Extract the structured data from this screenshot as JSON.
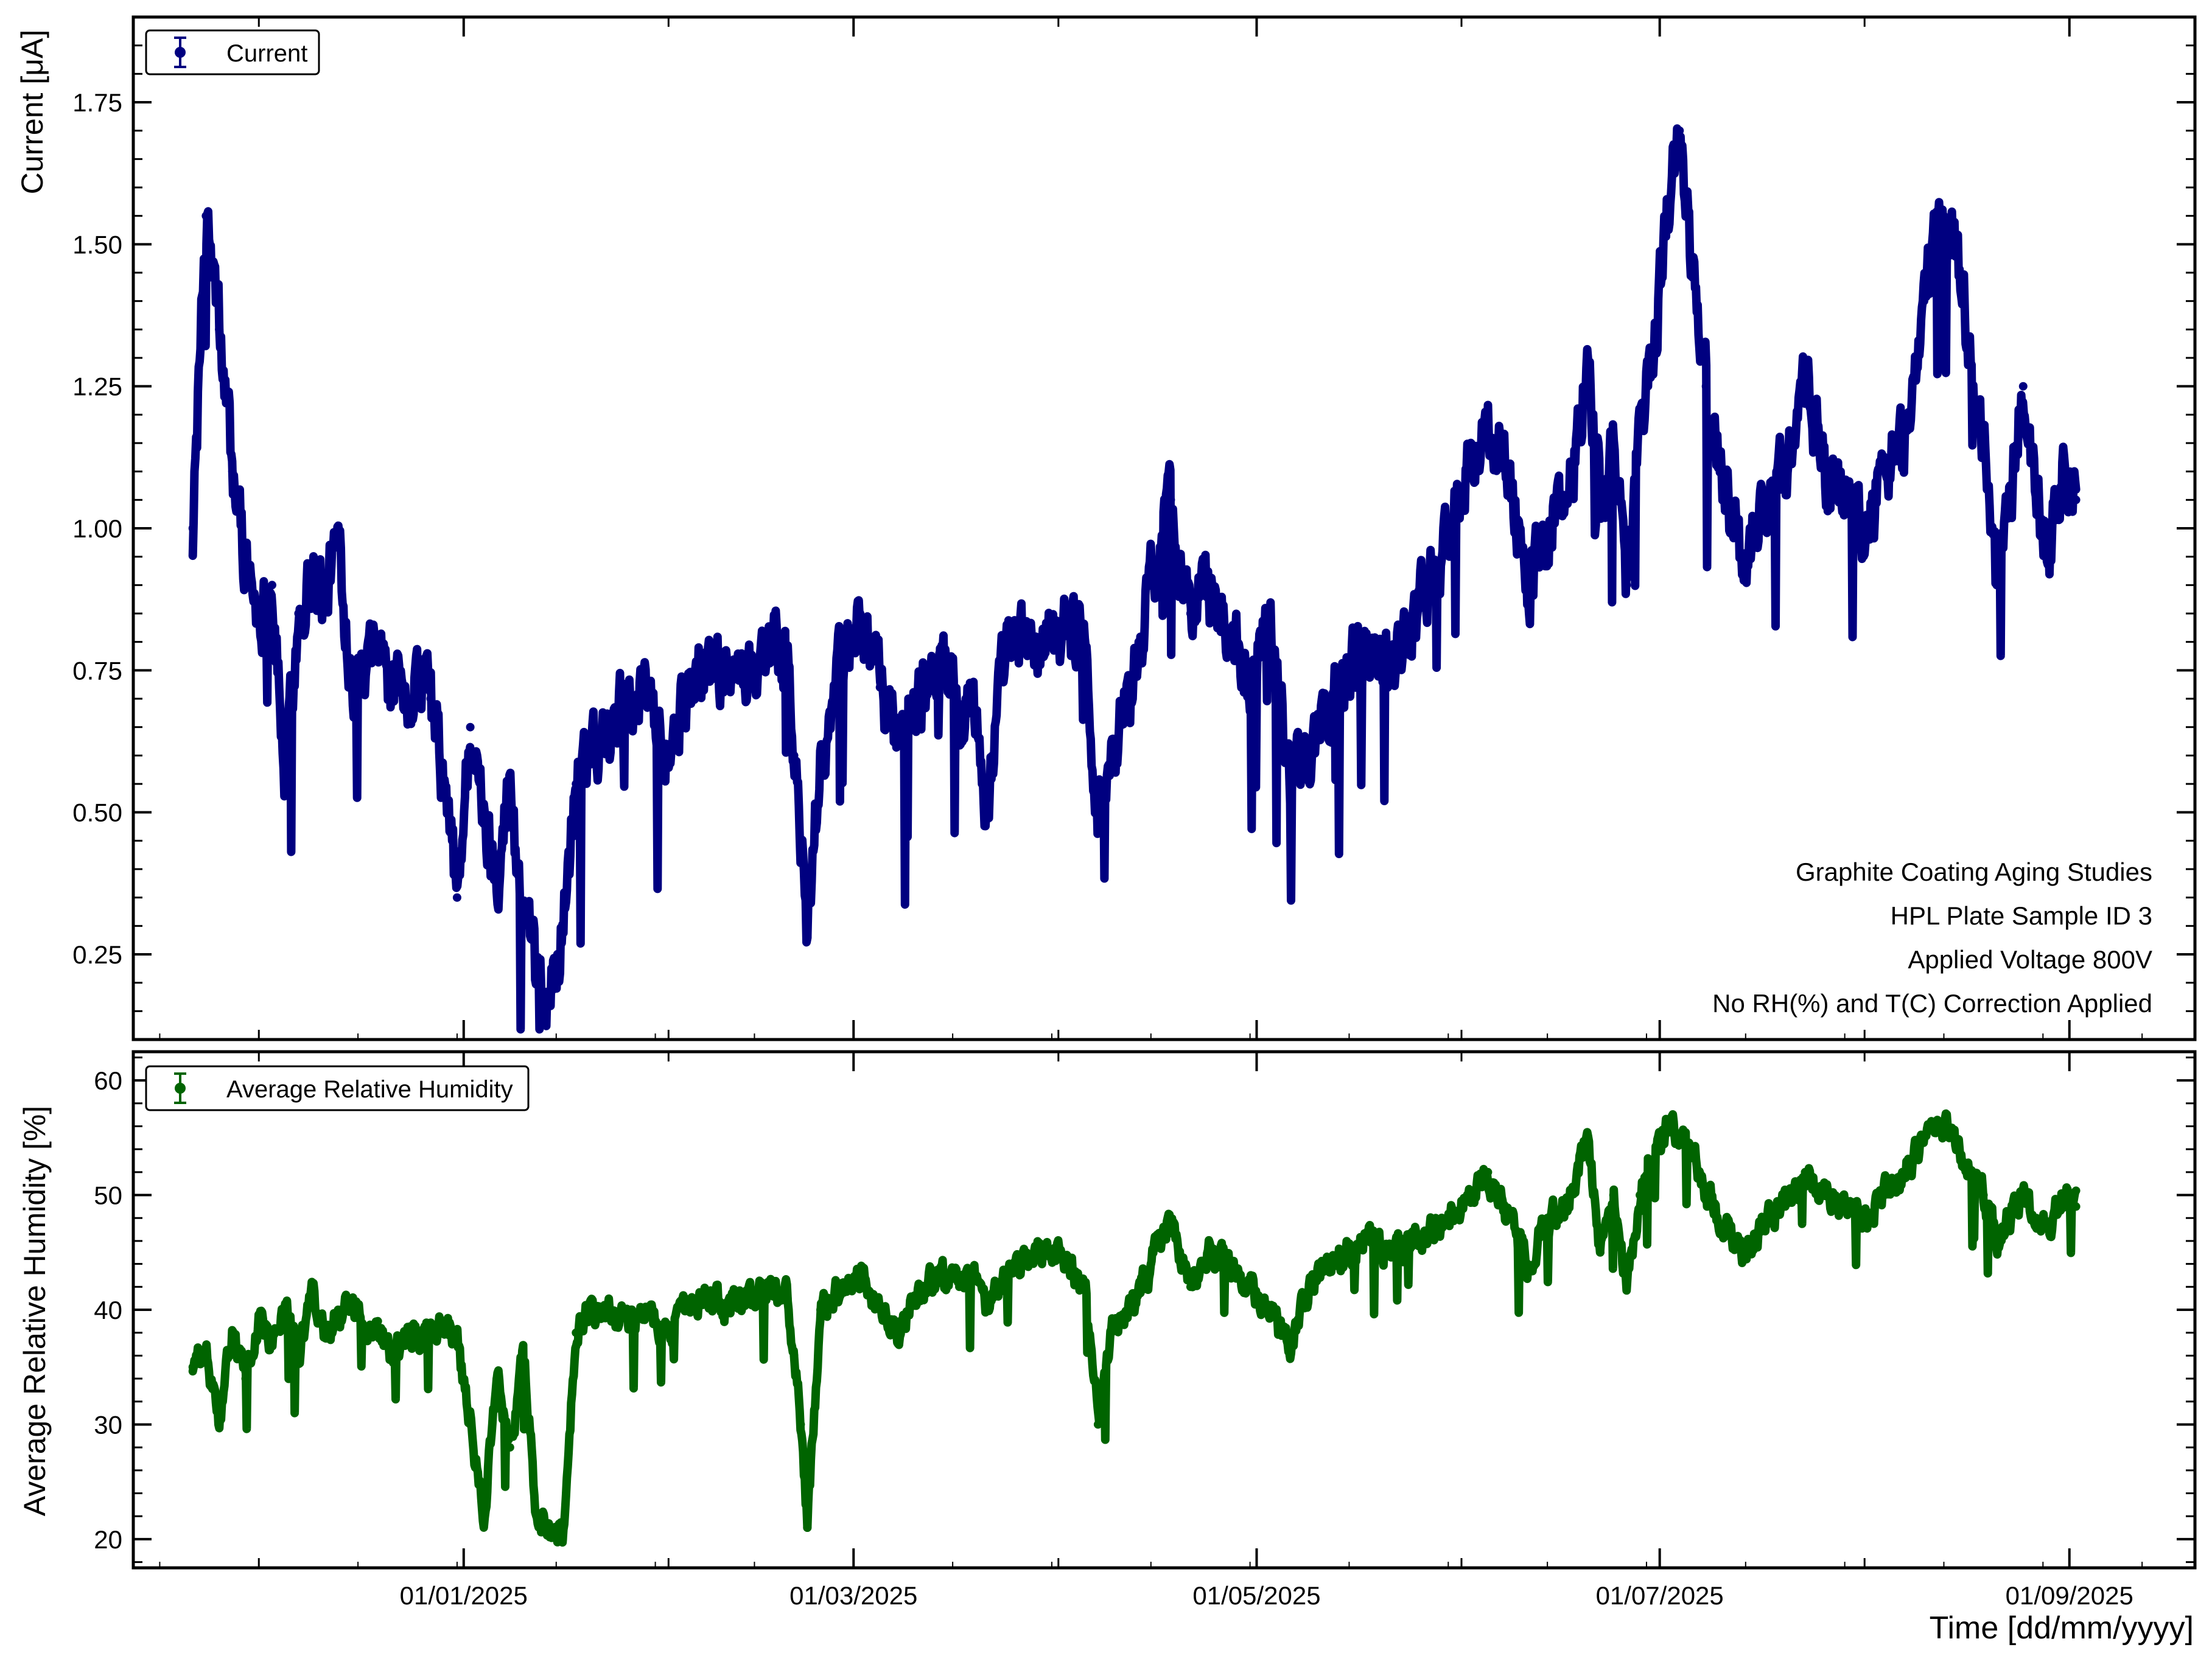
{
  "chart_data": [
    {
      "type": "line",
      "panel": "top",
      "ylabel": "Current [μA]",
      "ylim": [
        0.1,
        1.9
      ],
      "yticks": [
        0.25,
        0.5,
        0.75,
        1.0,
        1.25,
        1.5,
        1.75
      ],
      "ytick_labels": [
        "0.25",
        "0.50",
        "0.75",
        "1.00",
        "1.25",
        "1.50",
        "1.75"
      ],
      "legend": "top-left",
      "color": "#000080",
      "series": [
        {
          "name": "Current",
          "x": [
            "2024-11-21",
            "2024-11-23",
            "2024-11-25",
            "2024-11-27",
            "2024-11-29",
            "2024-12-01",
            "2024-12-03",
            "2024-12-05",
            "2024-12-07",
            "2024-12-09",
            "2024-12-11",
            "2024-12-13",
            "2024-12-15",
            "2024-12-17",
            "2024-12-19",
            "2024-12-21",
            "2024-12-23",
            "2024-12-25",
            "2024-12-27",
            "2024-12-29",
            "2024-12-31",
            "2025-01-02",
            "2025-01-04",
            "2025-01-06",
            "2025-01-08",
            "2025-01-10",
            "2025-01-12",
            "2025-01-14",
            "2025-01-16",
            "2025-01-18",
            "2025-01-20",
            "2025-01-23",
            "2025-01-26",
            "2025-01-29",
            "2025-02-01",
            "2025-02-04",
            "2025-02-07",
            "2025-02-10",
            "2025-02-13",
            "2025-02-16",
            "2025-02-19",
            "2025-02-20",
            "2025-02-21",
            "2025-02-22",
            "2025-02-24",
            "2025-02-27",
            "2025-03-02",
            "2025-03-05",
            "2025-03-08",
            "2025-03-11",
            "2025-03-14",
            "2025-03-17",
            "2025-03-19",
            "2025-03-21",
            "2025-03-24",
            "2025-03-27",
            "2025-03-30",
            "2025-04-02",
            "2025-04-05",
            "2025-04-07",
            "2025-04-09",
            "2025-04-12",
            "2025-04-15",
            "2025-04-18",
            "2025-04-21",
            "2025-04-24",
            "2025-04-27",
            "2025-04-30",
            "2025-05-03",
            "2025-05-06",
            "2025-05-09",
            "2025-05-12",
            "2025-05-15",
            "2025-05-18",
            "2025-05-21",
            "2025-05-24",
            "2025-05-27",
            "2025-05-30",
            "2025-06-02",
            "2025-06-05",
            "2025-06-08",
            "2025-06-11",
            "2025-06-14",
            "2025-06-17",
            "2025-06-20",
            "2025-06-22",
            "2025-06-24",
            "2025-06-26",
            "2025-06-28",
            "2025-06-30",
            "2025-07-02",
            "2025-07-04",
            "2025-07-06",
            "2025-07-08",
            "2025-07-11",
            "2025-07-14",
            "2025-07-17",
            "2025-07-20",
            "2025-07-23",
            "2025-07-26",
            "2025-07-29",
            "2025-08-01",
            "2025-08-04",
            "2025-08-07",
            "2025-08-10",
            "2025-08-13",
            "2025-08-15",
            "2025-08-17",
            "2025-08-19",
            "2025-08-21",
            "2025-08-23",
            "2025-08-25",
            "2025-08-27",
            "2025-08-29",
            "2025-08-31",
            "2025-09-02"
          ],
          "y": [
            1.0,
            1.55,
            1.35,
            1.1,
            0.95,
            0.85,
            0.9,
            0.55,
            0.85,
            0.92,
            0.88,
            0.98,
            0.75,
            0.72,
            0.8,
            0.72,
            0.68,
            0.74,
            0.7,
            0.55,
            0.35,
            0.65,
            0.48,
            0.4,
            0.55,
            0.3,
            0.2,
            0.17,
            0.3,
            0.55,
            0.62,
            0.66,
            0.7,
            0.72,
            0.6,
            0.72,
            0.75,
            0.76,
            0.74,
            0.8,
            0.75,
            0.6,
            0.45,
            0.28,
            0.6,
            0.75,
            0.85,
            0.72,
            0.62,
            0.7,
            0.78,
            0.68,
            0.72,
            0.5,
            0.78,
            0.8,
            0.78,
            0.85,
            0.8,
            0.5,
            0.6,
            0.72,
            0.9,
            1.05,
            0.85,
            0.88,
            0.82,
            0.75,
            0.85,
            0.55,
            0.6,
            0.7,
            0.75,
            0.8,
            0.78,
            0.82,
            0.9,
            0.98,
            1.1,
            1.2,
            1.1,
            0.9,
            1.0,
            1.05,
            1.3,
            1.05,
            1.15,
            0.9,
            1.2,
            1.3,
            1.55,
            1.7,
            1.45,
            1.25,
            1.05,
            0.95,
            1.05,
            1.1,
            1.25,
            1.1,
            1.05,
            1.0,
            1.1,
            1.15,
            1.4,
            1.55,
            1.5,
            1.3,
            1.15,
            0.9,
            1.05,
            1.25,
            1.05,
            0.95,
            1.1,
            1.05
          ]
        }
      ]
    },
    {
      "type": "line",
      "panel": "bottom",
      "ylabel": "Average Relative Humidity [%]",
      "xlabel": "Time [dd/mm/yyyy]",
      "ylim": [
        17.5,
        62.5
      ],
      "yticks": [
        20,
        30,
        40,
        50,
        60
      ],
      "ytick_labels": [
        "20",
        "30",
        "40",
        "50",
        "60"
      ],
      "legend": "top-left",
      "color": "#006400",
      "series": [
        {
          "name": "Average Relative Humidity",
          "x": [
            "2024-11-21",
            "2024-11-23",
            "2024-11-25",
            "2024-11-27",
            "2024-11-29",
            "2024-12-01",
            "2024-12-03",
            "2024-12-05",
            "2024-12-07",
            "2024-12-09",
            "2024-12-11",
            "2024-12-13",
            "2024-12-15",
            "2024-12-17",
            "2024-12-19",
            "2024-12-21",
            "2024-12-23",
            "2024-12-25",
            "2024-12-27",
            "2024-12-29",
            "2024-12-31",
            "2025-01-02",
            "2025-01-04",
            "2025-01-06",
            "2025-01-08",
            "2025-01-10",
            "2025-01-12",
            "2025-01-14",
            "2025-01-16",
            "2025-01-18",
            "2025-01-20",
            "2025-01-23",
            "2025-01-26",
            "2025-01-29",
            "2025-02-01",
            "2025-02-04",
            "2025-02-07",
            "2025-02-10",
            "2025-02-13",
            "2025-02-16",
            "2025-02-19",
            "2025-02-20",
            "2025-02-21",
            "2025-02-22",
            "2025-02-24",
            "2025-02-27",
            "2025-03-02",
            "2025-03-05",
            "2025-03-08",
            "2025-03-11",
            "2025-03-14",
            "2025-03-17",
            "2025-03-19",
            "2025-03-21",
            "2025-03-24",
            "2025-03-27",
            "2025-03-30",
            "2025-04-02",
            "2025-04-05",
            "2025-04-07",
            "2025-04-09",
            "2025-04-12",
            "2025-04-15",
            "2025-04-18",
            "2025-04-21",
            "2025-04-24",
            "2025-04-27",
            "2025-04-30",
            "2025-05-03",
            "2025-05-06",
            "2025-05-09",
            "2025-05-12",
            "2025-05-15",
            "2025-05-18",
            "2025-05-21",
            "2025-05-24",
            "2025-05-27",
            "2025-05-30",
            "2025-06-02",
            "2025-06-05",
            "2025-06-08",
            "2025-06-11",
            "2025-06-14",
            "2025-06-17",
            "2025-06-20",
            "2025-06-22",
            "2025-06-24",
            "2025-06-26",
            "2025-06-28",
            "2025-06-30",
            "2025-07-02",
            "2025-07-04",
            "2025-07-06",
            "2025-07-08",
            "2025-07-11",
            "2025-07-14",
            "2025-07-17",
            "2025-07-20",
            "2025-07-23",
            "2025-07-26",
            "2025-07-29",
            "2025-08-01",
            "2025-08-04",
            "2025-08-07",
            "2025-08-10",
            "2025-08-13",
            "2025-08-15",
            "2025-08-17",
            "2025-08-19",
            "2025-08-21",
            "2025-08-23",
            "2025-08-25",
            "2025-08-27",
            "2025-08-29",
            "2025-08-31",
            "2025-09-02"
          ],
          "y": [
            35,
            36,
            30,
            38,
            34,
            39,
            37,
            40,
            36,
            41,
            38,
            40,
            41,
            38,
            39,
            36,
            37,
            38,
            38,
            39,
            37,
            30,
            22,
            34,
            28,
            36,
            22,
            21,
            20,
            38,
            40,
            40,
            39,
            40,
            38,
            40,
            41,
            40,
            41,
            42,
            41,
            36,
            30,
            21,
            40,
            42,
            43,
            40,
            38,
            42,
            43,
            42,
            43,
            40,
            43,
            44,
            45,
            44,
            42,
            30,
            38,
            40,
            44,
            48,
            42,
            45,
            44,
            42,
            40,
            36,
            42,
            44,
            45,
            46,
            45,
            46,
            47,
            48,
            50,
            52,
            48,
            44,
            48,
            49,
            55,
            45,
            50,
            42,
            50,
            53,
            56,
            55,
            54,
            50,
            47,
            45,
            48,
            49,
            52,
            50,
            49,
            48,
            50,
            52,
            55,
            56,
            54,
            52,
            50,
            46,
            48,
            50,
            48,
            47,
            50,
            49
          ]
        }
      ]
    }
  ],
  "x_axis": {
    "start": "2024-11-12",
    "end": "2025-09-20",
    "tick_dates": [
      "2025-01-01",
      "2025-03-01",
      "2025-05-01",
      "2025-07-01",
      "2025-09-01"
    ],
    "tick_labels": [
      "01/01/2025",
      "01/03/2025",
      "01/05/2025",
      "01/07/2025",
      "01/09/2025"
    ],
    "xlabel": "Time [dd/mm/yyyy]"
  },
  "annotations": [
    "Graphite Coating Aging Studies",
    "HPL Plate Sample ID 3",
    "Applied Voltage 800V",
    "No RH(%) and T(C) Correction Applied"
  ]
}
